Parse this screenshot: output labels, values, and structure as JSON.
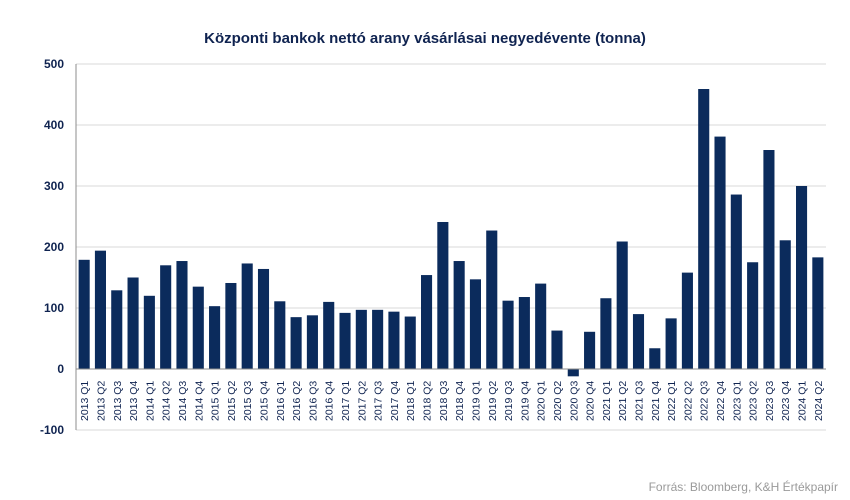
{
  "chart_data": {
    "type": "bar",
    "title": "Központi bankok nettó  arany vásárlásai negyedévente  (tonna)",
    "xlabel": "",
    "ylabel": "",
    "ylim": [
      -100,
      500
    ],
    "yticks": [
      500,
      400,
      300,
      200,
      100,
      0,
      -100
    ],
    "grid": true,
    "bar_color": "#0b2b5c",
    "categories": [
      "2013 Q1",
      "2013 Q2",
      "2013 Q3",
      "2013 Q4",
      "2014 Q1",
      "2014 Q2",
      "2014 Q3",
      "2014 Q4",
      "2015 Q1",
      "2015 Q2",
      "2015 Q3",
      "2015 Q4",
      "2016 Q1",
      "2016 Q2",
      "2016 Q3",
      "2016 Q4",
      "2017 Q1",
      "2017 Q2",
      "2017 Q3",
      "2017 Q4",
      "2018 Q1",
      "2018 Q2",
      "2018 Q3",
      "2018 Q4",
      "2019 Q1",
      "2019 Q2",
      "2019 Q3",
      "2019 Q4",
      "2020 Q1",
      "2020 Q2",
      "2020 Q3",
      "2020 Q4",
      "2021 Q1",
      "2021 Q2",
      "2021 Q3",
      "2021 Q4",
      "2022 Q1",
      "2022 Q2",
      "2022 Q3",
      "2022 Q4",
      "2023 Q1",
      "2023 Q2",
      "2023 Q3",
      "2023 Q4",
      "2024 Q1",
      "2024 Q2"
    ],
    "values": [
      179,
      194,
      129,
      150,
      120,
      170,
      177,
      135,
      103,
      141,
      173,
      164,
      111,
      85,
      88,
      110,
      92,
      97,
      97,
      94,
      86,
      154,
      241,
      177,
      147,
      227,
      112,
      118,
      140,
      63,
      -12,
      61,
      116,
      209,
      90,
      34,
      83,
      158,
      459,
      381,
      286,
      175,
      359,
      211,
      300,
      183
    ]
  },
  "source": "Forrás: Bloomberg,  K&H Értékpapír"
}
